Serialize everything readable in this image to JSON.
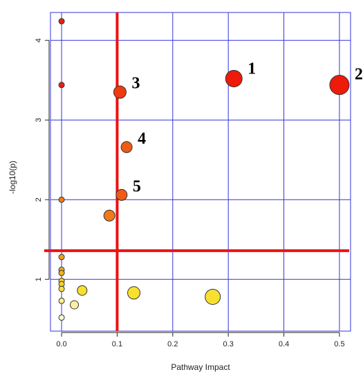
{
  "chart_data": {
    "type": "scatter",
    "xlabel": "Pathway Impact",
    "ylabel": "-log10(p)",
    "xlim": [
      -0.02,
      0.52
    ],
    "ylim": [
      0.35,
      4.35
    ],
    "xticks": [
      0.0,
      0.1,
      0.2,
      0.3,
      0.4,
      0.5
    ],
    "yticks": [
      1,
      2,
      3,
      4
    ],
    "xtick_labels": [
      "0.0",
      "0.1",
      "0.2",
      "0.3",
      "0.4",
      "0.5"
    ],
    "ytick_labels": [
      "1",
      "2",
      "3",
      "4"
    ],
    "grid": true,
    "grid_color": "#3333dd",
    "threshold_color": "#ee1111",
    "thresholds": {
      "x": 0.1,
      "y": 1.36
    },
    "points": [
      {
        "x": 0.0,
        "y": 4.24,
        "size": 4,
        "color": "#e8200e",
        "label": ""
      },
      {
        "x": 0.0,
        "y": 3.44,
        "size": 4,
        "color": "#e8200e",
        "label": ""
      },
      {
        "x": 0.31,
        "y": 3.52,
        "size": 12,
        "color": "#ee1a0a",
        "label": "1"
      },
      {
        "x": 0.5,
        "y": 3.44,
        "size": 14,
        "color": "#ee1a0a",
        "label": "2"
      },
      {
        "x": 0.105,
        "y": 3.35,
        "size": 9,
        "color": "#f03a10",
        "label": "3"
      },
      {
        "x": 0.117,
        "y": 2.66,
        "size": 8,
        "color": "#f05a14",
        "label": "4"
      },
      {
        "x": 0.108,
        "y": 2.06,
        "size": 8,
        "color": "#f05a14",
        "label": "5"
      },
      {
        "x": 0.0,
        "y": 2.0,
        "size": 4,
        "color": "#f07a18",
        "label": ""
      },
      {
        "x": 0.086,
        "y": 1.8,
        "size": 8,
        "color": "#f07a18",
        "label": ""
      },
      {
        "x": 0.0,
        "y": 1.28,
        "size": 4,
        "color": "#f0a020",
        "label": ""
      },
      {
        "x": 0.0,
        "y": 1.12,
        "size": 4,
        "color": "#f4b020",
        "label": ""
      },
      {
        "x": 0.0,
        "y": 1.08,
        "size": 4,
        "color": "#f4b020",
        "label": ""
      },
      {
        "x": 0.0,
        "y": 0.98,
        "size": 4,
        "color": "#f6d030",
        "label": ""
      },
      {
        "x": 0.0,
        "y": 0.94,
        "size": 4,
        "color": "#f6d030",
        "label": ""
      },
      {
        "x": 0.0,
        "y": 0.88,
        "size": 4,
        "color": "#f8e040",
        "label": ""
      },
      {
        "x": 0.037,
        "y": 0.86,
        "size": 7,
        "color": "#f8e030",
        "label": ""
      },
      {
        "x": 0.13,
        "y": 0.83,
        "size": 9,
        "color": "#f8e030",
        "label": ""
      },
      {
        "x": 0.272,
        "y": 0.78,
        "size": 11,
        "color": "#f8e030",
        "label": ""
      },
      {
        "x": 0.0,
        "y": 0.73,
        "size": 4,
        "color": "#fcf090",
        "label": ""
      },
      {
        "x": 0.023,
        "y": 0.68,
        "size": 6,
        "color": "#fcf0a0",
        "label": ""
      },
      {
        "x": 0.0,
        "y": 0.52,
        "size": 4,
        "color": "#fdf8d0",
        "label": ""
      }
    ]
  }
}
